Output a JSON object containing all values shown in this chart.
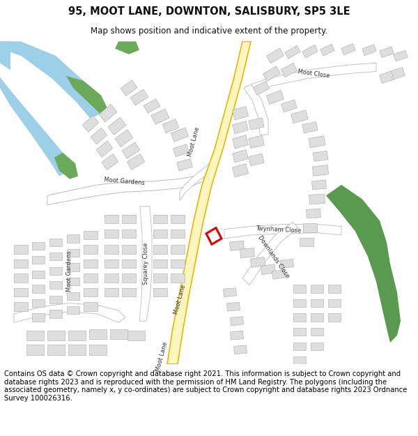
{
  "title_line1": "95, MOOT LANE, DOWNTON, SALISBURY, SP5 3LE",
  "title_line2": "Map shows position and indicative extent of the property.",
  "footer_text": "Contains OS data © Crown copyright and database right 2021. This information is subject to Crown copyright and database rights 2023 and is reproduced with the permission of HM Land Registry. The polygons (including the associated geometry, namely x, y co-ordinates) are subject to Crown copyright and database rights 2023 Ordnance Survey 100026316.",
  "map_bg": "#f7f7f7",
  "road_yellow_fill": "#fdf5c0",
  "road_yellow_edge": "#e8b800",
  "road_white_fill": "#ffffff",
  "road_gray_edge": "#bbbbbb",
  "building_fill": "#dedede",
  "building_edge": "#aaaaaa",
  "water_color": "#9ecfe8",
  "green_color": "#6aaa5a",
  "green2_color": "#5a9a50",
  "property_edge": "#dd0000",
  "title_fontsize": 10.5,
  "subtitle_fontsize": 8.5,
  "footer_fontsize": 7.2,
  "label_fontsize": 6.0,
  "title_color": "#111111",
  "label_color": "#333333"
}
